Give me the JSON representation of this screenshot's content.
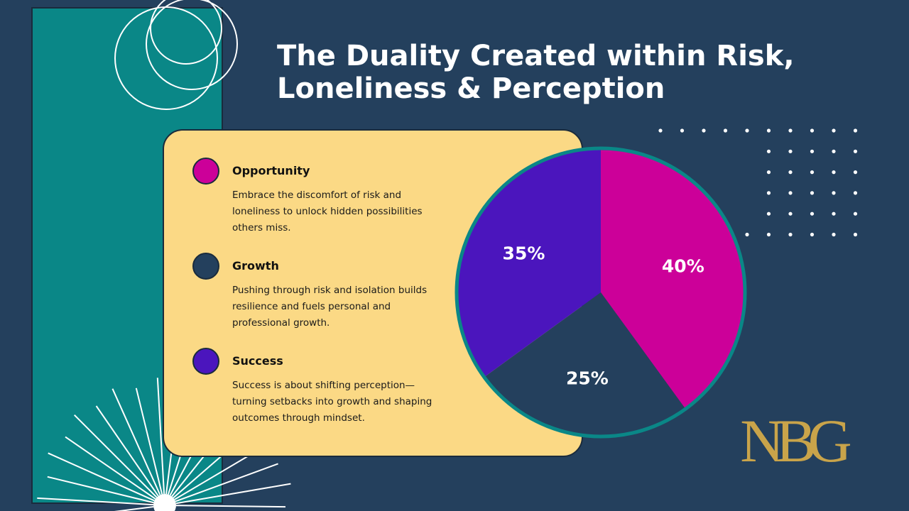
{
  "title": {
    "line1": "The Duality Created within Risk,",
    "line2": "Loneliness & Perception"
  },
  "legend": [
    {
      "title": "Opportunity",
      "text": "Embrace the discomfort of risk and loneliness to unlock hidden possibilities others miss.",
      "color": "#cc0099"
    },
    {
      "title": "Growth",
      "text": "Pushing through risk and isolation builds resilience and fuels personal and professional growth.",
      "color": "#24405d"
    },
    {
      "title": "Success",
      "text": "Success is about shifting perception—turning setbacks into growth and shaping outcomes through mindset.",
      "color": "#4b15bd"
    }
  ],
  "chart_data": {
    "type": "pie",
    "categories": [
      "Opportunity",
      "Growth",
      "Success"
    ],
    "values": [
      40,
      25,
      35
    ],
    "labels": [
      "40%",
      "25%",
      "35%"
    ],
    "colors": [
      "#cc0099",
      "#24405d",
      "#4b15bd"
    ],
    "border_color": "#0a8787"
  },
  "logo": {
    "text": "NBG",
    "color": "#c9a44a"
  },
  "colors": {
    "background": "#24405d",
    "teal": "#0a8787",
    "card": "#fbd985"
  }
}
